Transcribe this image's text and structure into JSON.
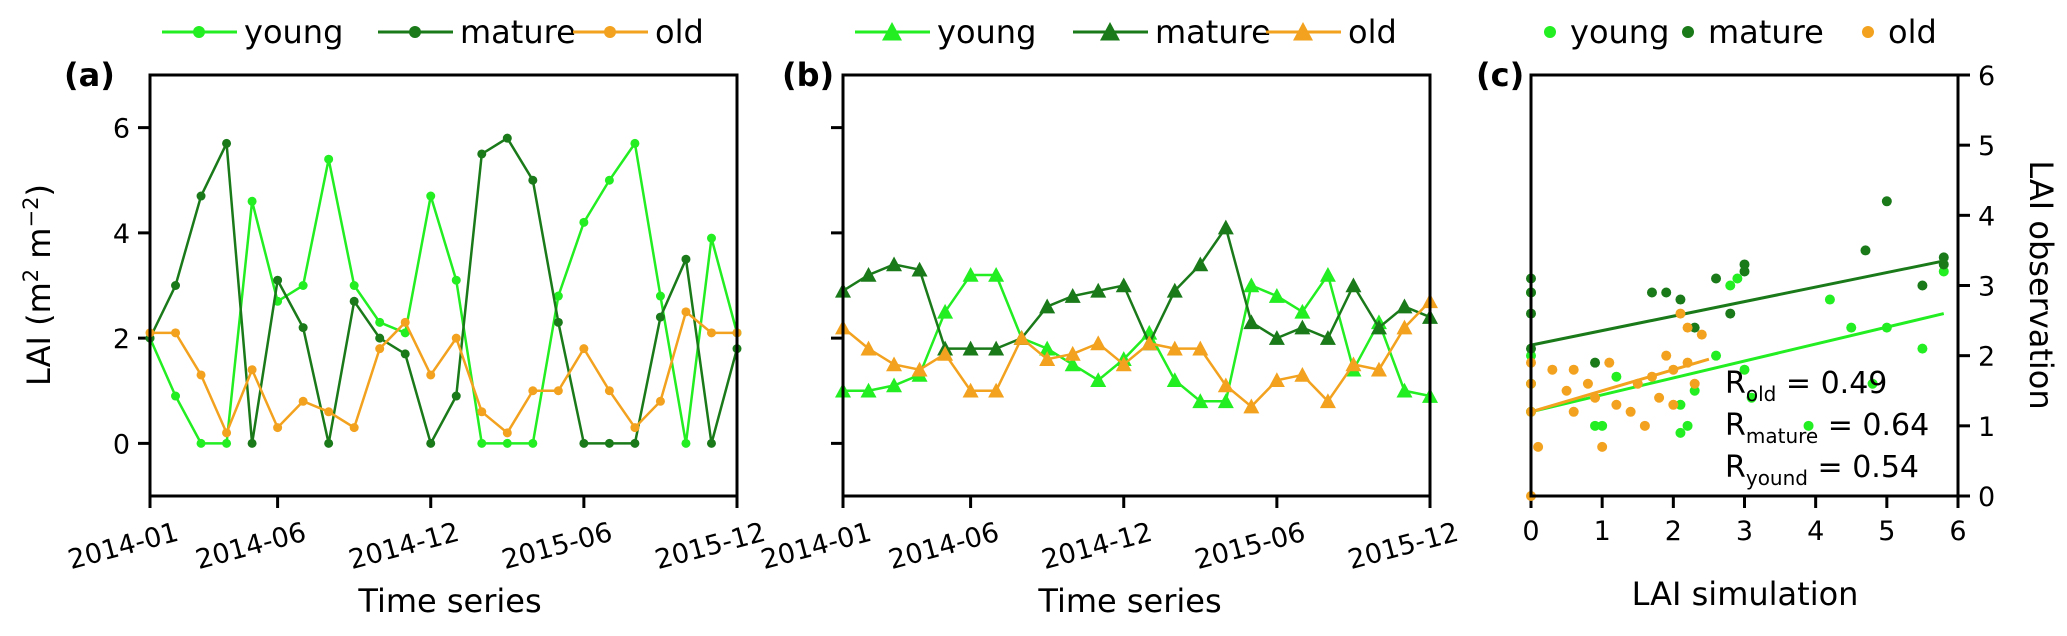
{
  "colors": {
    "young": "#22ee22",
    "mature": "#1a7a1a",
    "old": "#f2a21e"
  },
  "chart_data": [
    {
      "panel": "(a)",
      "type": "line",
      "marker": "circle",
      "xlabel": "Time series",
      "ylabel_main": "LAI (m",
      "ylabel_sup1": "2",
      "ylabel_mid": " m",
      "ylabel_sup2": "−2",
      "ylabel_end": ")",
      "ylim": [
        -1,
        7
      ],
      "yticks": [
        0,
        2,
        4,
        6
      ],
      "xlim": [
        0,
        23
      ],
      "xticks": [
        {
          "pos": 0,
          "label": "2014-01"
        },
        {
          "pos": 5,
          "label": "2014-06"
        },
        {
          "pos": 11,
          "label": "2014-12"
        },
        {
          "pos": 17,
          "label": "2015-06"
        },
        {
          "pos": 23,
          "label": "2015-12"
        }
      ],
      "legend": [
        "young",
        "mature",
        "old"
      ],
      "series": [
        {
          "name": "young",
          "values": [
            2.0,
            0.9,
            0.0,
            0.0,
            4.6,
            2.7,
            3.0,
            5.4,
            3.0,
            2.3,
            2.1,
            4.7,
            3.1,
            0.0,
            0.0,
            0.0,
            2.8,
            4.2,
            5.0,
            5.7,
            2.8,
            0.0,
            3.9,
            2.1
          ]
        },
        {
          "name": "mature",
          "values": [
            2.0,
            3.0,
            4.7,
            5.7,
            0.0,
            3.1,
            2.2,
            0.0,
            2.7,
            2.0,
            1.7,
            0.0,
            0.9,
            5.5,
            5.8,
            5.0,
            2.3,
            0.0,
            0.0,
            0.0,
            2.4,
            3.5,
            0.0,
            1.8
          ]
        },
        {
          "name": "old",
          "values": [
            2.1,
            2.1,
            1.3,
            0.2,
            1.4,
            0.3,
            0.8,
            0.6,
            0.3,
            1.8,
            2.3,
            1.3,
            2.0,
            0.6,
            0.2,
            1.0,
            1.0,
            1.8,
            1.0,
            0.3,
            0.8,
            2.5,
            2.1,
            2.1
          ]
        }
      ]
    },
    {
      "panel": "(b)",
      "type": "line",
      "marker": "triangle",
      "xlabel": "Time series",
      "ylim": [
        -1,
        7
      ],
      "yticks": [
        0,
        2,
        4,
        6
      ],
      "xlim": [
        0,
        23
      ],
      "xticks": [
        {
          "pos": 0,
          "label": "2014-01"
        },
        {
          "pos": 5,
          "label": "2014-06"
        },
        {
          "pos": 11,
          "label": "2014-12"
        },
        {
          "pos": 17,
          "label": "2015-06"
        },
        {
          "pos": 23,
          "label": "2015-12"
        }
      ],
      "legend": [
        "young",
        "mature",
        "old"
      ],
      "series": [
        {
          "name": "young",
          "values": [
            1.0,
            1.0,
            1.1,
            1.3,
            2.5,
            3.2,
            3.2,
            2.0,
            1.8,
            1.5,
            1.2,
            1.6,
            2.1,
            1.2,
            0.8,
            0.8,
            3.0,
            2.8,
            2.5,
            3.2,
            1.4,
            2.3,
            1.0,
            0.9
          ]
        },
        {
          "name": "mature",
          "values": [
            2.9,
            3.2,
            3.4,
            3.3,
            1.8,
            1.8,
            1.8,
            2.0,
            2.6,
            2.8,
            2.9,
            3.0,
            1.9,
            2.9,
            3.4,
            4.1,
            2.3,
            2.0,
            2.2,
            2.0,
            3.0,
            2.2,
            2.6,
            2.4
          ]
        },
        {
          "name": "old",
          "values": [
            2.2,
            1.8,
            1.5,
            1.4,
            1.7,
            1.0,
            1.0,
            2.0,
            1.6,
            1.7,
            1.9,
            1.5,
            1.9,
            1.8,
            1.8,
            1.1,
            0.7,
            1.2,
            1.3,
            0.8,
            1.5,
            1.4,
            2.2,
            2.7
          ]
        }
      ]
    },
    {
      "panel": "(c)",
      "type": "scatter",
      "xlabel": "LAI simulation",
      "ylabel": "LAI observation",
      "xlim": [
        0,
        6
      ],
      "ylim": [
        0,
        6
      ],
      "xticks": [
        0,
        1,
        2,
        3,
        4,
        5,
        6
      ],
      "yticks": [
        0,
        1,
        2,
        3,
        4,
        5,
        6
      ],
      "legend": [
        "young",
        "mature",
        "old"
      ],
      "annotations": [
        {
          "base": "R",
          "sub": "old",
          "text": " = 0.49"
        },
        {
          "base": "R",
          "sub": "mature",
          "text": " = 0.64"
        },
        {
          "base": "R",
          "sub": "yound",
          "text": " = 0.54"
        }
      ],
      "fit_lines": [
        {
          "name": "mature",
          "x": [
            0,
            5.8
          ],
          "y": [
            2.15,
            3.35
          ]
        },
        {
          "name": "young",
          "x": [
            0,
            5.8
          ],
          "y": [
            1.2,
            2.6
          ]
        },
        {
          "name": "old",
          "x": [
            0,
            2.5
          ],
          "y": [
            1.2,
            1.95
          ]
        }
      ],
      "series": [
        {
          "name": "young",
          "points": [
            [
              0,
              2.9
            ],
            [
              0,
              2.0
            ],
            [
              0,
              1.6
            ],
            [
              0,
              1.2
            ],
            [
              0.9,
              1.0
            ],
            [
              1.0,
              1.0
            ],
            [
              1.2,
              1.7
            ],
            [
              2.1,
              0.9
            ],
            [
              2.2,
              1.0
            ],
            [
              2.1,
              1.3
            ],
            [
              2.3,
              1.5
            ],
            [
              2.6,
              2.0
            ],
            [
              2.8,
              3.0
            ],
            [
              2.9,
              3.1
            ],
            [
              3.0,
              1.8
            ],
            [
              3.1,
              1.4
            ],
            [
              3.9,
              1.0
            ],
            [
              4.2,
              2.8
            ],
            [
              4.5,
              2.4
            ],
            [
              4.8,
              1.6
            ],
            [
              5.0,
              2.4
            ],
            [
              5.5,
              2.1
            ],
            [
              5.8,
              3.2
            ]
          ]
        },
        {
          "name": "mature",
          "points": [
            [
              0,
              3.1
            ],
            [
              0,
              2.9
            ],
            [
              0,
              2.6
            ],
            [
              0,
              2.1
            ],
            [
              0.9,
              1.9
            ],
            [
              1.7,
              2.9
            ],
            [
              1.9,
              2.9
            ],
            [
              2.1,
              2.8
            ],
            [
              2.3,
              2.4
            ],
            [
              2.6,
              3.1
            ],
            [
              2.8,
              2.6
            ],
            [
              3.0,
              3.3
            ],
            [
              3.0,
              3.2
            ],
            [
              4.7,
              3.5
            ],
            [
              5.0,
              4.2
            ],
            [
              5.5,
              3.0
            ],
            [
              5.8,
              3.4
            ],
            [
              5.8,
              3.3
            ]
          ]
        },
        {
          "name": "old",
          "points": [
            [
              0,
              1.9
            ],
            [
              0,
              1.6
            ],
            [
              0,
              1.2
            ],
            [
              0.1,
              0.7
            ],
            [
              0.3,
              1.8
            ],
            [
              0.5,
              1.5
            ],
            [
              0.6,
              1.8
            ],
            [
              0.6,
              1.2
            ],
            [
              0.8,
              1.6
            ],
            [
              0.9,
              1.4
            ],
            [
              1.0,
              0.7
            ],
            [
              1.1,
              1.9
            ],
            [
              1.2,
              1.3
            ],
            [
              1.4,
              1.2
            ],
            [
              1.5,
              1.6
            ],
            [
              1.6,
              1.0
            ],
            [
              1.7,
              1.7
            ],
            [
              1.8,
              1.4
            ],
            [
              1.9,
              2.0
            ],
            [
              2.0,
              1.8
            ],
            [
              2.0,
              1.3
            ],
            [
              2.1,
              2.6
            ],
            [
              2.2,
              2.4
            ],
            [
              2.2,
              1.9
            ],
            [
              2.3,
              1.6
            ],
            [
              2.4,
              2.3
            ],
            [
              0,
              0.0
            ]
          ]
        }
      ]
    }
  ]
}
